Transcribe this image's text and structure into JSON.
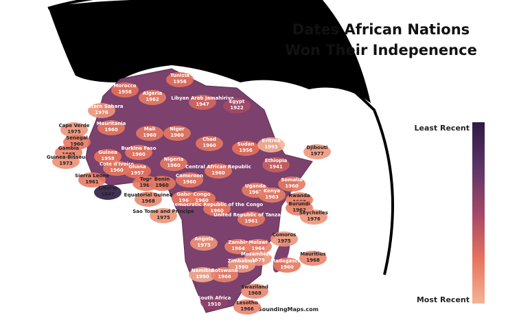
{
  "title_lines": [
    "Dates African Nations",
    "Won Their Indepenence"
  ],
  "legend": {
    "top": "Least Recent",
    "bottom": "Most Recent",
    "colorscale": [
      "#2e1a45",
      "#5c3468",
      "#a24868",
      "#e6725c",
      "#f4b396"
    ]
  },
  "footer": "SoundingMaps.com",
  "countries": [
    {
      "name": "Morocco",
      "year": 1956
    },
    {
      "name": "Tunisia",
      "year": 1956
    },
    {
      "name": "Algeria",
      "year": 1962
    },
    {
      "name": "Libyan Arab Jamahiriya",
      "year": 1947
    },
    {
      "name": "Egypt",
      "year": 1922
    },
    {
      "name": "Western Sahara",
      "year": 1976
    },
    {
      "name": "Mauritania",
      "year": 1960
    },
    {
      "name": "Mali",
      "year": 1960
    },
    {
      "name": "Niger",
      "year": 1960
    },
    {
      "name": "Chad",
      "year": 1960
    },
    {
      "name": "Sudan",
      "year": 1956
    },
    {
      "name": "Eritrea",
      "year": 1993
    },
    {
      "name": "Djibouti",
      "year": 1977
    },
    {
      "name": "Cape Verde",
      "year": 1975
    },
    {
      "name": "Senegal",
      "year": 1960
    },
    {
      "name": "Gambia",
      "year": 1965
    },
    {
      "name": "Guinea-Bissau",
      "year": 1973
    },
    {
      "name": "Guinea",
      "year": 1958
    },
    {
      "name": "Burkina Faso",
      "year": 1960
    },
    {
      "name": "Nigeria",
      "year": 1960
    },
    {
      "name": "Cote d'Ivoire",
      "year": 1960
    },
    {
      "name": "Ghana",
      "year": 1957
    },
    {
      "name": "Sierra Leone",
      "year": 1961
    },
    {
      "name": "Liberia",
      "year": 1847
    },
    {
      "name": "Togo",
      "year": 1960
    },
    {
      "name": "Benin",
      "year": 1960
    },
    {
      "name": "Cameroon",
      "year": 1960
    },
    {
      "name": "Central African Republic",
      "year": 1960
    },
    {
      "name": "Ethiopia",
      "year": 1941
    },
    {
      "name": "Somalia",
      "year": 1960
    },
    {
      "name": "Equatorial Guinea",
      "year": 1968
    },
    {
      "name": "Gabon",
      "year": 1960
    },
    {
      "name": "Congo",
      "year": 1960
    },
    {
      "name": "Uganda",
      "year": 1962
    },
    {
      "name": "Kenya",
      "year": 1963
    },
    {
      "name": "Rwanda",
      "year": 1962
    },
    {
      "name": "Burundi",
      "year": 1962
    },
    {
      "name": "Democratic Republic of the Congo",
      "year": 1960
    },
    {
      "name": "Sao Tome and Principe",
      "year": 1975
    },
    {
      "name": "United Republic of Tanzania",
      "year": 1961
    },
    {
      "name": "Seychelles",
      "year": 1976
    },
    {
      "name": "Angola",
      "year": 1975
    },
    {
      "name": "Zambia",
      "year": 1964
    },
    {
      "name": "Malawi",
      "year": 1964
    },
    {
      "name": "Comoros",
      "year": 1975
    },
    {
      "name": "Mozambique",
      "year": 1975
    },
    {
      "name": "Zimbabwe",
      "year": 1980
    },
    {
      "name": "Madagascar",
      "year": 1960
    },
    {
      "name": "Mauritius",
      "year": 1968
    },
    {
      "name": "Namibia",
      "year": 1990
    },
    {
      "name": "Botswana",
      "year": 1966
    },
    {
      "name": "Swaziland",
      "year": 1968
    },
    {
      "name": "South Africa",
      "year": 1910
    },
    {
      "name": "Lesotho",
      "year": 1966
    }
  ]
}
